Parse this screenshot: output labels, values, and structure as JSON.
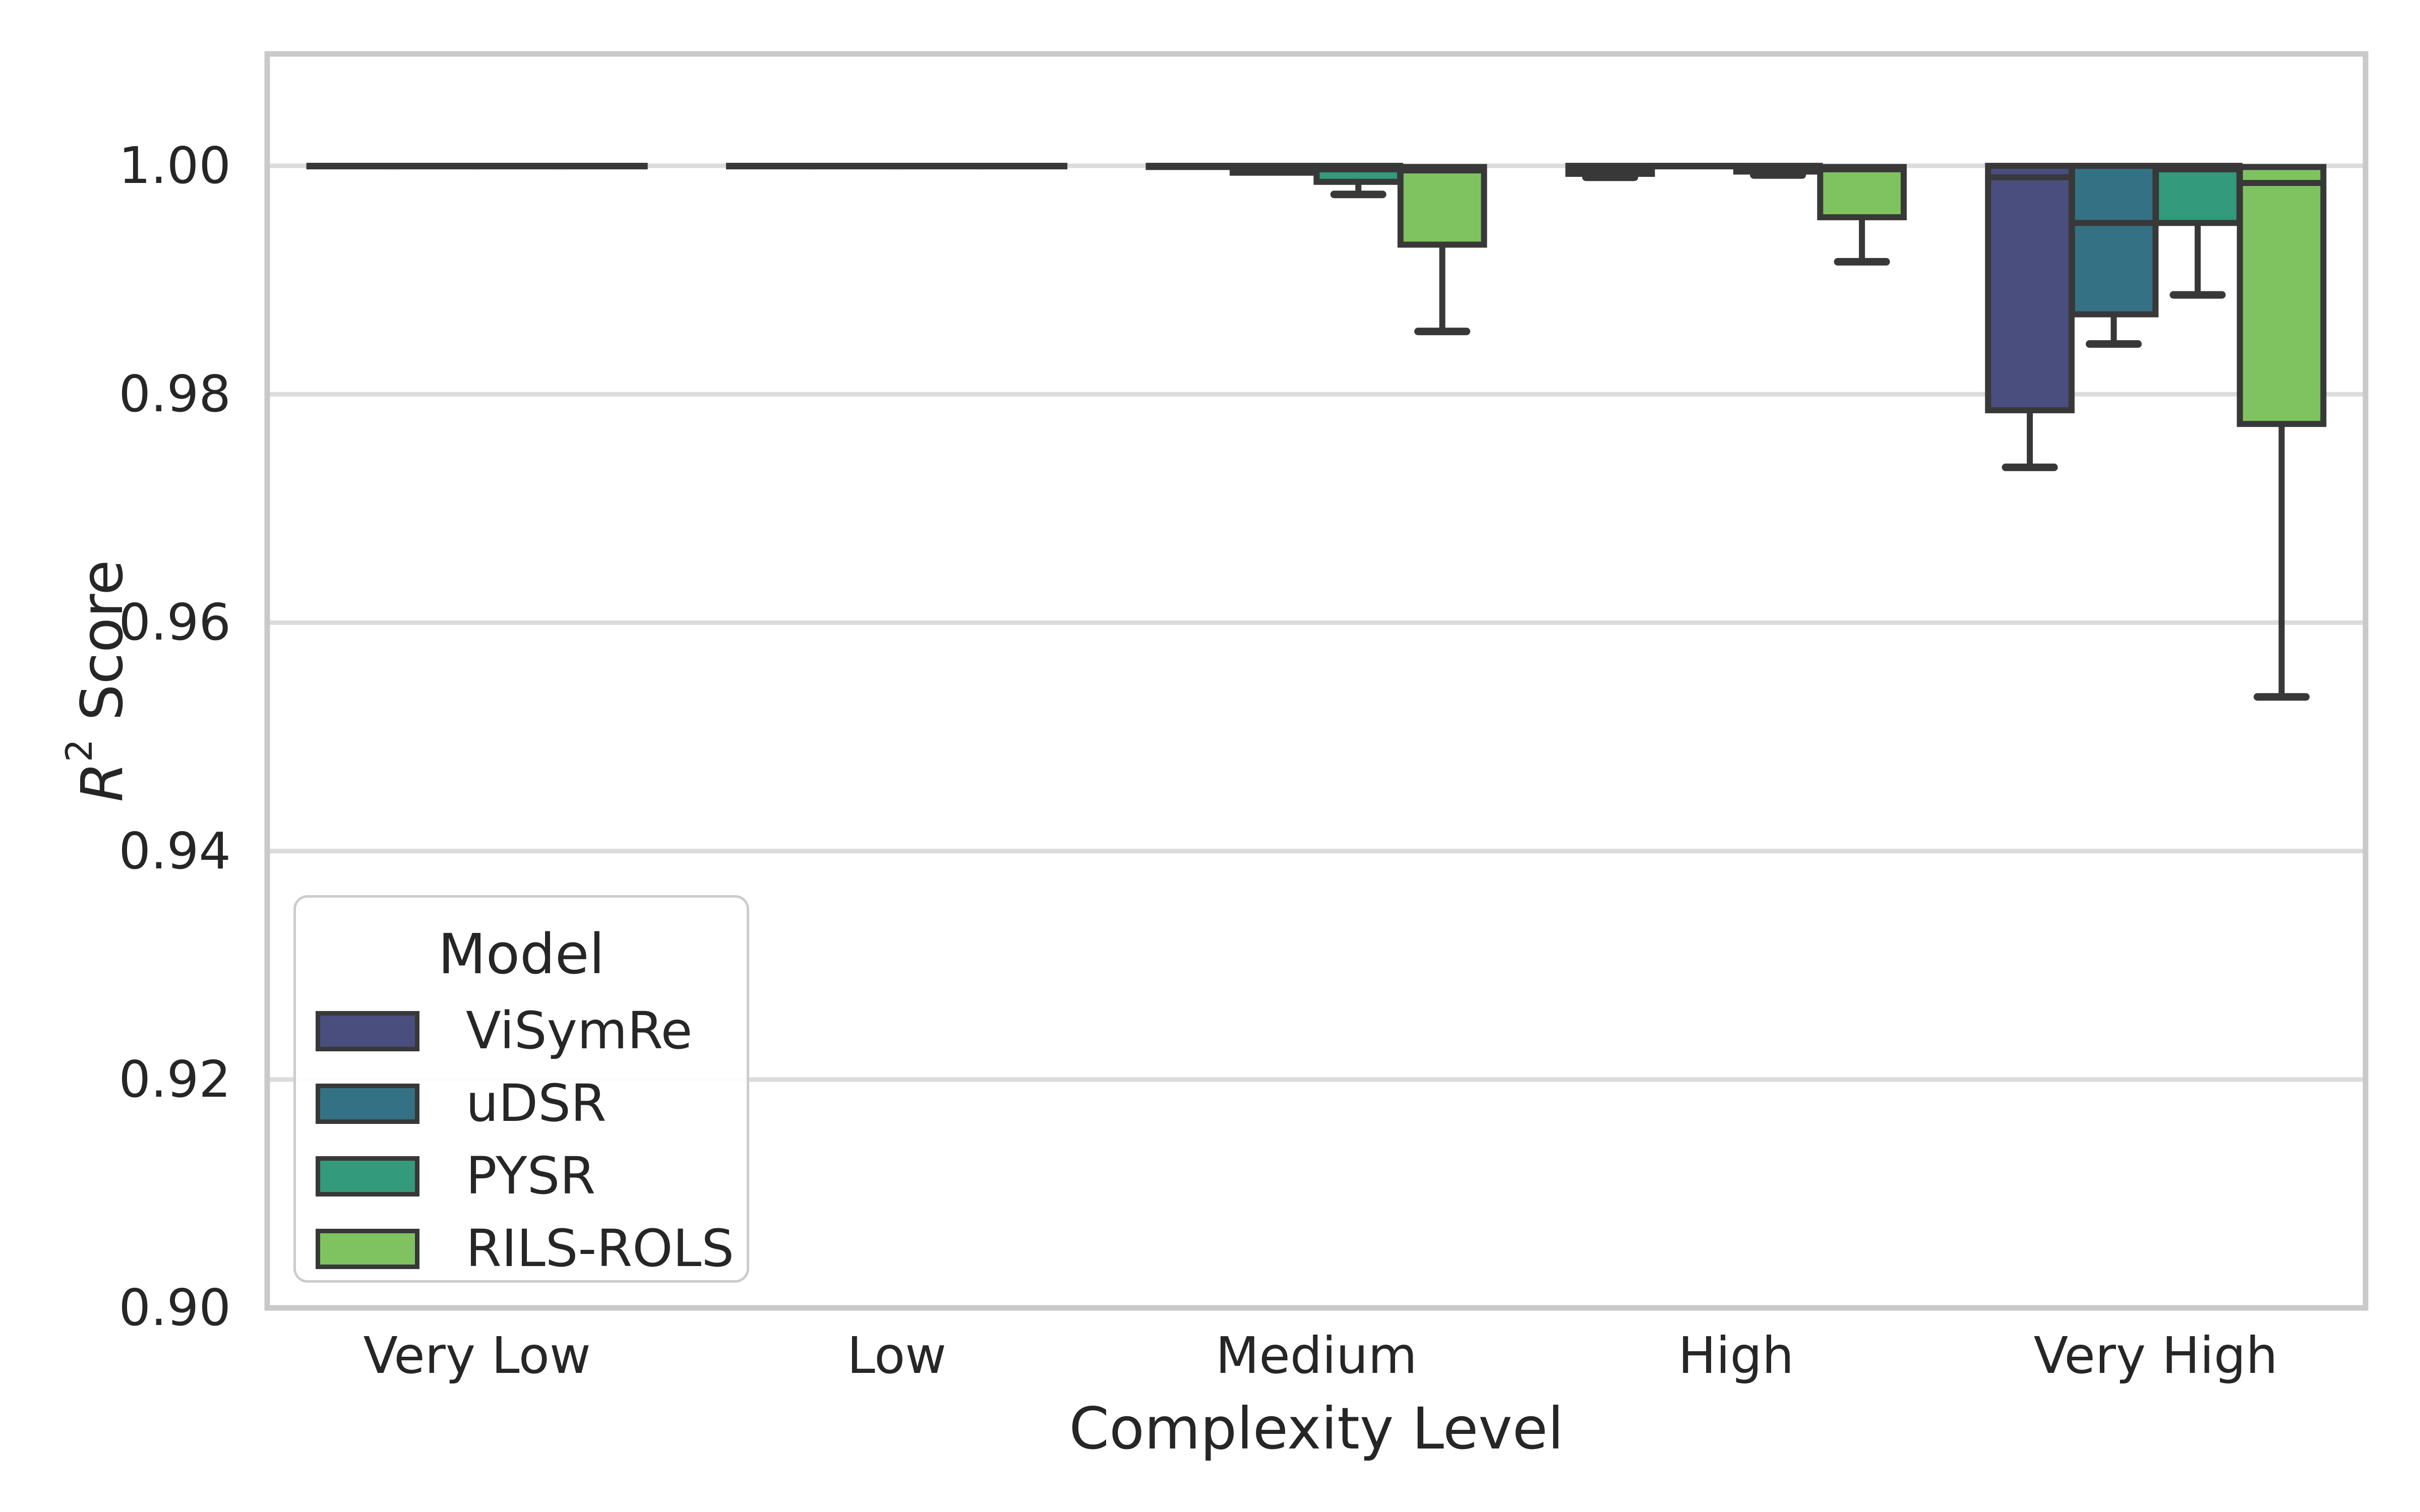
{
  "axes": {
    "xlabel": "Complexity Level",
    "ylabel_main": "R",
    "ylabel_sup": "2",
    "ylabel_rest": "Score"
  },
  "legend": {
    "title": "Model",
    "items": [
      {
        "label": "ViSymRe",
        "color": "#4a4e7e"
      },
      {
        "label": "uDSR",
        "color": "#347184"
      },
      {
        "label": "PYSR",
        "color": "#339a7b"
      },
      {
        "label": "RILS-ROLS",
        "color": "#7fc360"
      }
    ]
  },
  "colors": {
    "edge": "#383838",
    "grid": "#dcdcdc",
    "spine": "#c9c9c9",
    "text": "#262626",
    "background": "#ffffff"
  },
  "chart_data": {
    "type": "boxplot",
    "title": "",
    "xlabel": "Complexity Level",
    "ylabel": "R² Score",
    "categories": [
      "Very Low",
      "Low",
      "Medium",
      "High",
      "Very High"
    ],
    "ylim": [
      0.9,
      1.0098
    ],
    "yticks": [
      0.9,
      0.92,
      0.94,
      0.96,
      0.98,
      1.0
    ],
    "ytick_labels": [
      "0.90",
      "0.92",
      "0.94",
      "0.96",
      "0.98",
      "1.00"
    ],
    "grid": "horizontal",
    "legend_position": "lower-left-inside",
    "series": [
      {
        "name": "ViSymRe",
        "color": "#4a4e7e",
        "boxes": [
          {
            "whislo": 1.0,
            "q1": 1.0,
            "med": 1.0,
            "q3": 1.0,
            "whishi": 1.0
          },
          {
            "whislo": 1.0,
            "q1": 1.0,
            "med": 1.0,
            "q3": 1.0,
            "whishi": 1.0
          },
          {
            "whislo": 0.9999,
            "q1": 0.9999,
            "med": 1.0,
            "q3": 1.0,
            "whishi": 1.0
          },
          {
            "whislo": 0.999,
            "q1": 0.9993,
            "med": 0.9997,
            "q3": 1.0,
            "whishi": 1.0
          },
          {
            "whislo": 0.9736,
            "q1": 0.9786,
            "med": 0.999,
            "q3": 1.0,
            "whishi": 1.0
          }
        ]
      },
      {
        "name": "uDSR",
        "color": "#347184",
        "boxes": [
          {
            "whislo": 1.0,
            "q1": 1.0,
            "med": 1.0,
            "q3": 1.0,
            "whishi": 1.0
          },
          {
            "whislo": 1.0,
            "q1": 1.0,
            "med": 1.0,
            "q3": 1.0,
            "whishi": 1.0
          },
          {
            "whislo": 0.9994,
            "q1": 0.9994,
            "med": 0.9997,
            "q3": 1.0,
            "whishi": 1.0
          },
          {
            "whislo": 1.0,
            "q1": 1.0,
            "med": 1.0,
            "q3": 1.0,
            "whishi": 1.0
          },
          {
            "whislo": 0.9844,
            "q1": 0.987,
            "med": 0.995,
            "q3": 1.0,
            "whishi": 1.0
          }
        ]
      },
      {
        "name": "PYSR",
        "color": "#339a7b",
        "boxes": [
          {
            "whislo": 1.0,
            "q1": 1.0,
            "med": 1.0,
            "q3": 1.0,
            "whishi": 1.0
          },
          {
            "whislo": 1.0,
            "q1": 1.0,
            "med": 1.0,
            "q3": 1.0,
            "whishi": 1.0
          },
          {
            "whislo": 0.9975,
            "q1": 0.9986,
            "med": 0.9997,
            "q3": 1.0,
            "whishi": 1.0
          },
          {
            "whislo": 0.9992,
            "q1": 0.9995,
            "med": 0.9998,
            "q3": 1.0,
            "whishi": 1.0
          },
          {
            "whislo": 0.9887,
            "q1": 0.995,
            "med": 0.9997,
            "q3": 1.0,
            "whishi": 1.0
          }
        ]
      },
      {
        "name": "RILS-ROLS",
        "color": "#7fc360",
        "boxes": [
          {
            "whislo": 1.0,
            "q1": 1.0,
            "med": 1.0,
            "q3": 1.0,
            "whishi": 1.0
          },
          {
            "whislo": 1.0,
            "q1": 1.0,
            "med": 1.0,
            "q3": 1.0,
            "whishi": 1.0
          },
          {
            "whislo": 0.9855,
            "q1": 0.9931,
            "med": 0.9996,
            "q3": 0.9999,
            "whishi": 0.9999
          },
          {
            "whislo": 0.9916,
            "q1": 0.9955,
            "med": 0.9997,
            "q3": 0.9999,
            "whishi": 0.9999
          },
          {
            "whislo": 0.9535,
            "q1": 0.9774,
            "med": 0.9985,
            "q3": 0.9999,
            "whishi": 0.9999
          }
        ]
      }
    ]
  }
}
